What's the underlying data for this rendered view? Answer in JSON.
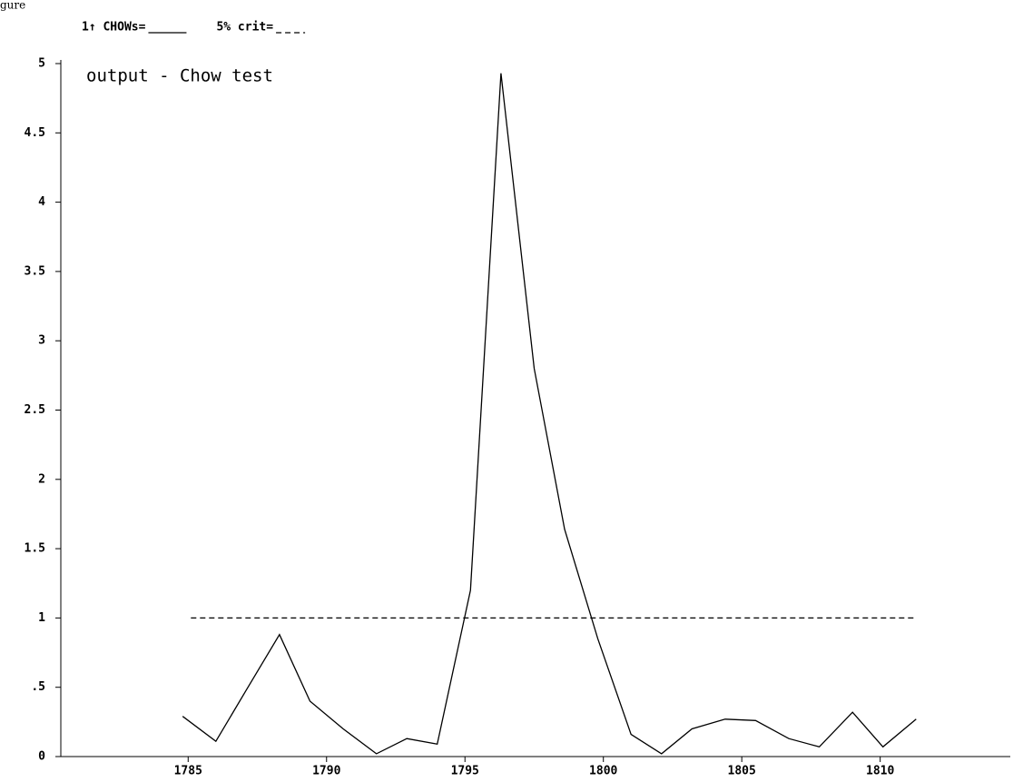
{
  "caption_fragment": "gure",
  "chart_data": {
    "type": "line",
    "title": "output - Chow test",
    "series": [
      {
        "name": "1↑ CHOWs=",
        "color": "#000000",
        "dash": false,
        "x": [
          1784.8,
          1786.0,
          1787.1,
          1788.3,
          1789.4,
          1790.6,
          1791.8,
          1792.9,
          1794.0,
          1795.2,
          1796.3,
          1797.5,
          1798.6,
          1799.8,
          1801.0,
          1802.1,
          1803.2,
          1804.4,
          1805.5,
          1806.7,
          1807.8,
          1809.0,
          1810.1,
          1811.3
        ],
        "values": [
          0.29,
          0.11,
          0.48,
          0.88,
          0.4,
          0.2,
          0.02,
          0.13,
          0.09,
          1.2,
          4.93,
          2.8,
          1.64,
          0.85,
          0.16,
          0.02,
          0.2,
          0.27,
          0.26,
          0.13,
          0.07,
          0.32,
          0.07,
          0.27
        ]
      },
      {
        "name": "5% crit=",
        "color": "#000000",
        "dash": true,
        "x": [
          1785.1,
          1811.3
        ],
        "values": [
          1,
          1
        ]
      }
    ],
    "xlim": [
      1780.4,
      1814.7
    ],
    "xticks": [
      1785,
      1790,
      1795,
      1800,
      1805,
      1810
    ],
    "ylim": [
      0,
      5
    ],
    "yticks": [
      0,
      {
        "value": 0.5,
        "label": ".5"
      },
      1,
      1.5,
      2,
      2.5,
      3,
      3.5,
      4,
      4.5,
      5
    ]
  }
}
